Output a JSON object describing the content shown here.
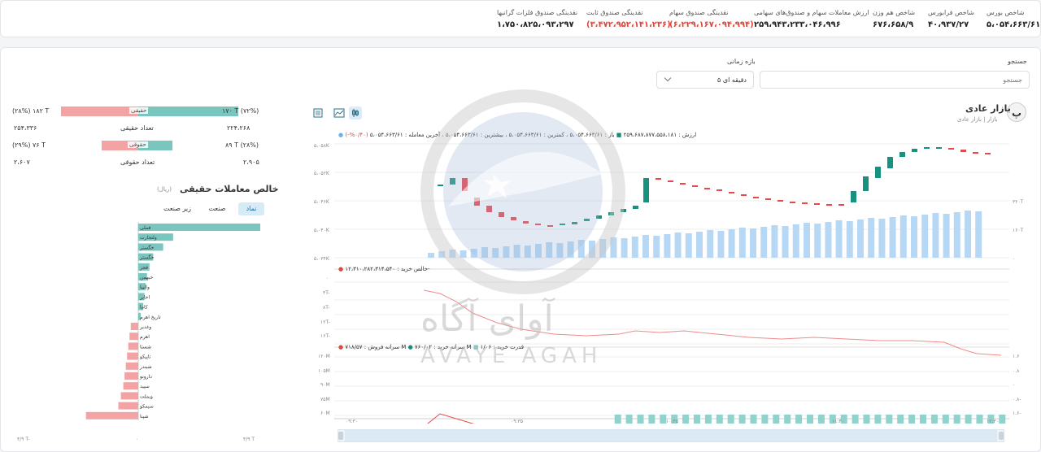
{
  "stats": [
    {
      "label": "شاخص بورس",
      "value": "۵،۰۵۴،۶۶۳/۶۱",
      "neg": false
    },
    {
      "label": "شاخص فرابورس",
      "value": "۴۰،۹۳۷/۲۷",
      "neg": false
    },
    {
      "label": "شاخص هم وزن",
      "value": "۶۷۶،۶۵۸/۹",
      "neg": false
    },
    {
      "label": "ارزش معاملات سهام و صندوق‌های سهامی",
      "value": "۲۵۹،۹۴۳،۲۳۳،۰۴۶،۹۹۶",
      "neg": false
    },
    {
      "label": "نقدینگی صندوق سهام",
      "value": "(۶،۲۲۹،۱۶۷،۰۹۴،۹۹۴)",
      "neg": true
    },
    {
      "label": "نقدینگی صندوق ثابت",
      "value": "(۳،۴۷۲،۹۵۲،۱۴۱،۲۳۶)",
      "neg": true
    },
    {
      "label": "نقدینگی صندوق فلزات گرانبها",
      "value": "۱،۷۵۰،۸۲۵،۰۹۳،۲۹۷",
      "neg": false
    }
  ],
  "search": {
    "label": "جستجو",
    "placeholder": "جستجو"
  },
  "period": {
    "label": "بازه زمانی",
    "value": "۵ دقیقه ای"
  },
  "market": {
    "avatar": "پ",
    "title": "بازار عادی",
    "subtitle": "بازار | بازار عادی"
  },
  "toolbar": {
    "candle_icon": "candle-icon",
    "line_icon": "line-icon",
    "expand_icon": "expand-icon"
  },
  "legend_price": {
    "change": "(۰/۴۰%-)",
    "last": "آخرین معامله : ۵،۰۵۴،۶۶۳/۶۱",
    "high": "بیشترین : ۵،۰۵۴،۶۶۳/۶۱",
    "low": "کمترین : ۵،۰۵۴،۶۶۳/۶۱",
    "open": "باز : ۵،۰۵۴،۶۶۳/۶۱",
    "value": "ارزش : ۲۵۹،۶۸۷،۸۷۷،۵۵۸،۱۸۱"
  },
  "legend_net": {
    "text": "خالص خرید : ۱۲،۳۱۰،۲۸۲،۳۱۴،۵۴۰-"
  },
  "legend_power": {
    "power": "قدرت خرید : ۱/۰۶",
    "buy": "سرانه خرید : ۷۶۰/۰۲ M",
    "sell": "سرانه فروش : ۷۱۸/۵۷ M"
  },
  "price_axis": [
    "۵،۰۵۸K",
    "۵،۰۵۲K",
    "۵،۰۴۶K",
    "۵،۰۴۰K",
    "۵،۰۳۴K"
  ],
  "vol_axis": [
    "۳۲۰T",
    "۱۶۰T",
    "۰"
  ],
  "net_axis": [
    "۰",
    "۴T-",
    "۸T-",
    "۱۲T-",
    "۱۶T-"
  ],
  "power_axis_left": [
    "۱۲۰M",
    "۱۰۵M",
    "۹۰M",
    "۷۵M",
    "۶۰M"
  ],
  "power_axis_right": [
    "۱.۶",
    "۰.۸",
    "۰",
    "۰.۸-",
    "۱.۶-"
  ],
  "time_axis": [
    "۰۹:۳۰",
    "۰۹:۳۵",
    "۱۰:۳۵",
    "۱۱:۴۰",
    "۱۲:۳۰"
  ],
  "watermark": {
    "fa": "آوای آگاه",
    "en": "AVAYE AGAH"
  },
  "compare": {
    "row1": {
      "right": "۱۷۰ T  (۷۲%)",
      "left": "(۲۸%)  ۱۸۲ T",
      "label": "حقیقی",
      "buy_pct": 72,
      "sell_pct": 28
    },
    "row2": {
      "right": "۲۲۴،۲۶۸",
      "center": "تعداد حقیقی",
      "left": "۲۵۴،۳۳۶"
    },
    "row3": {
      "right": "۸۹ T  (۲۸%)",
      "left": "(۲۹%)  ۷۶ T",
      "label": "حقوقی",
      "buy_pct": 28,
      "sell_pct": 29
    },
    "row4": {
      "right": "۲،۹۰۵",
      "center": "تعداد حقوقی",
      "left": "۲،۶۰۷"
    }
  },
  "net_panel": {
    "title": "خالص معاملات حقیقی",
    "unit": "(ریال)",
    "tabs": [
      "نماد",
      "صنعت",
      "زیر صنعت"
    ],
    "axis": [
      "۴/۹ T",
      "۰",
      "۴/۹ T-"
    ]
  },
  "chart_data": [
    {
      "type": "bar",
      "title": "خالص معاملات حقیقی",
      "categories": [
        "فملی",
        "ولتجارت",
        "خگستر",
        "خگستر",
        "فجر",
        "خبهمن",
        "والبیا",
        "اخابر",
        "کاما",
        "تاریخ اهرم",
        "وغدیر",
        "اهرم",
        "شستا",
        "تاپیکو",
        "شبندر",
        "دارونو",
        "سپید",
        "وبملت",
        "سیمکو",
        "شپنا"
      ],
      "values": [
        4.9,
        1.4,
        1.0,
        0.6,
        0.45,
        0.35,
        0.3,
        0.25,
        0.2,
        0.1,
        -0.3,
        -0.35,
        -0.4,
        -0.45,
        -0.5,
        -0.55,
        -0.6,
        -0.7,
        -0.8,
        -2.1
      ],
      "ylim": [
        -4.9,
        4.9
      ]
    }
  ]
}
